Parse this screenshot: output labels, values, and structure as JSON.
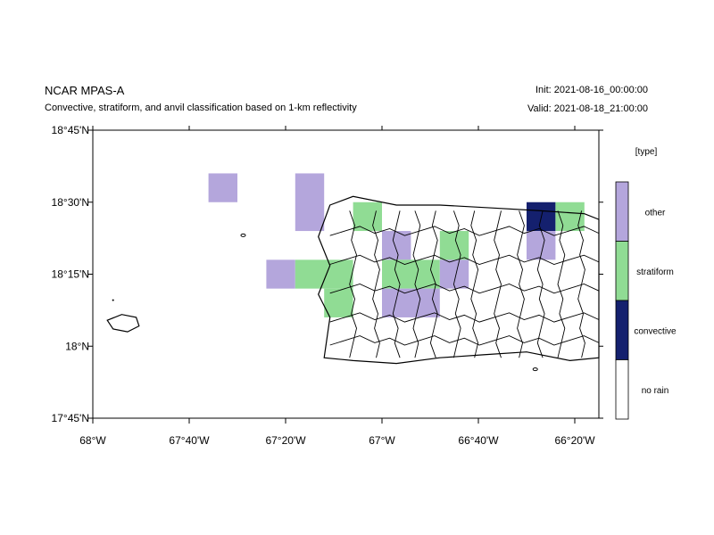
{
  "header": {
    "title": "NCAR MPAS-A",
    "subtitle": "Convective, stratiform, and anvil classification based on 1-km reflectivity",
    "init": "Init: 2021-08-16_00:00:00",
    "valid": "Valid: 2021-08-18_21:00:00"
  },
  "map": {
    "lon_range": [
      -68.0,
      -66.25
    ],
    "lat_range": [
      17.75,
      18.75
    ],
    "x_ticks": [
      {
        "lon": -68.0,
        "label": "68°W"
      },
      {
        "lon": -67.6667,
        "label": "67°40'W"
      },
      {
        "lon": -67.3333,
        "label": "67°20'W"
      },
      {
        "lon": -67.0,
        "label": "67°W"
      },
      {
        "lon": -66.6667,
        "label": "66°40'W"
      },
      {
        "lon": -66.3333,
        "label": "66°20'W"
      }
    ],
    "y_ticks": [
      {
        "lat": 18.75,
        "label": "18°45'N"
      },
      {
        "lat": 18.5,
        "label": "18°30'N"
      },
      {
        "lat": 18.25,
        "label": "18°15'N"
      },
      {
        "lat": 18.0,
        "label": "18°N"
      },
      {
        "lat": 17.75,
        "label": "17°45'N"
      }
    ],
    "colors": {
      "no_rain": "#ffffff",
      "convective": "#14206e",
      "stratiform": "#90dc94",
      "other": "#b4a6dc"
    },
    "cells": [
      {
        "lon0": -67.6,
        "lon1": -67.5,
        "lat0": 18.5,
        "lat1": 18.6,
        "type": "other"
      },
      {
        "lon0": -67.3,
        "lon1": -67.2,
        "lat0": 18.4,
        "lat1": 18.6,
        "type": "other"
      },
      {
        "lon0": -67.1,
        "lon1": -67.0,
        "lat0": 18.4,
        "lat1": 18.5,
        "type": "stratiform"
      },
      {
        "lon0": -67.0,
        "lon1": -66.9,
        "lat0": 18.3,
        "lat1": 18.4,
        "type": "other"
      },
      {
        "lon0": -66.8,
        "lon1": -66.7,
        "lat0": 18.3,
        "lat1": 18.4,
        "type": "stratiform"
      },
      {
        "lon0": -67.4,
        "lon1": -67.3,
        "lat0": 18.2,
        "lat1": 18.3,
        "type": "other"
      },
      {
        "lon0": -67.3,
        "lon1": -67.1,
        "lat0": 18.2,
        "lat1": 18.3,
        "type": "stratiform"
      },
      {
        "lon0": -67.2,
        "lon1": -67.1,
        "lat0": 18.1,
        "lat1": 18.2,
        "type": "stratiform"
      },
      {
        "lon0": -67.0,
        "lon1": -66.8,
        "lat0": 18.2,
        "lat1": 18.3,
        "type": "stratiform"
      },
      {
        "lon0": -66.8,
        "lon1": -66.7,
        "lat0": 18.2,
        "lat1": 18.3,
        "type": "other"
      },
      {
        "lon0": -67.0,
        "lon1": -66.8,
        "lat0": 18.1,
        "lat1": 18.2,
        "type": "other"
      },
      {
        "lon0": -66.5,
        "lon1": -66.4,
        "lat0": 18.4,
        "lat1": 18.5,
        "type": "convective"
      },
      {
        "lon0": -66.4,
        "lon1": -66.3,
        "lat0": 18.4,
        "lat1": 18.5,
        "type": "stratiform"
      },
      {
        "lon0": -66.5,
        "lon1": -66.4,
        "lat0": 18.3,
        "lat1": 18.4,
        "type": "other"
      }
    ],
    "puerto_rico_outline": [
      [
        -67.18,
        18.49
      ],
      [
        -67.1,
        18.52
      ],
      [
        -66.95,
        18.49
      ],
      [
        -66.8,
        18.49
      ],
      [
        -66.62,
        18.48
      ],
      [
        -66.45,
        18.47
      ],
      [
        -66.3,
        18.46
      ],
      [
        -66.25,
        18.44
      ],
      [
        -66.25,
        17.96
      ],
      [
        -66.35,
        17.95
      ],
      [
        -66.5,
        17.98
      ],
      [
        -66.65,
        17.97
      ],
      [
        -66.8,
        17.96
      ],
      [
        -66.95,
        17.94
      ],
      [
        -67.1,
        17.95
      ],
      [
        -67.2,
        17.96
      ],
      [
        -67.18,
        18.1
      ],
      [
        -67.22,
        18.18
      ],
      [
        -67.18,
        18.28
      ],
      [
        -67.22,
        18.38
      ],
      [
        -67.18,
        18.49
      ]
    ],
    "mona_island": [
      [
        -67.95,
        18.09
      ],
      [
        -67.9,
        18.11
      ],
      [
        -67.85,
        18.1
      ],
      [
        -67.84,
        18.07
      ],
      [
        -67.88,
        18.05
      ],
      [
        -67.93,
        18.06
      ],
      [
        -67.95,
        18.09
      ]
    ]
  },
  "legend": {
    "title": "[type]",
    "entries": [
      {
        "label": "other",
        "color": "#b4a6dc"
      },
      {
        "label": "stratiform",
        "color": "#90dc94"
      },
      {
        "label": "convective",
        "color": "#14206e"
      },
      {
        "label": "no rain",
        "color": "#ffffff"
      }
    ]
  }
}
